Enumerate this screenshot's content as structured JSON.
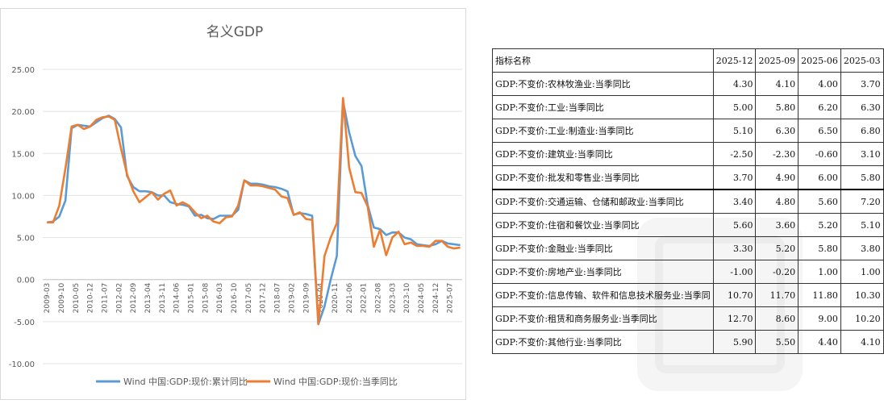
{
  "chart_data": {
    "type": "line",
    "title": "名义GDP",
    "xlabel": "",
    "ylabel": "",
    "ylim": [
      -10,
      25
    ],
    "yticks": [
      "25.00",
      "20.00",
      "15.00",
      "10.00",
      "5.00",
      "0.00",
      "-5.00",
      "-10.00"
    ],
    "xticks": [
      "2009-03",
      "2009-10",
      "2010-05",
      "2010-12",
      "2011-07",
      "2012-02",
      "2012-09",
      "2013-04",
      "2013-11",
      "2014-06",
      "2015-01",
      "2015-08",
      "2016-03",
      "2016-10",
      "2017-05",
      "2017-12",
      "2018-07",
      "2019-02",
      "2019-09",
      "2020-04",
      "2020-11",
      "2021-06",
      "2022-01",
      "2022-08",
      "2023-03",
      "2023-10",
      "2024-05",
      "2024-12",
      "2025-07"
    ],
    "grid": true,
    "legend_position": "bottom",
    "series": [
      {
        "name": "Wind 中国:GDP:现价:累计同比",
        "color": "#5b9bd5",
        "points": [
          [
            2009.17,
            6.8
          ],
          [
            2009.42,
            6.9
          ],
          [
            2009.67,
            7.5
          ],
          [
            2009.92,
            9.4
          ],
          [
            2010.17,
            18.0
          ],
          [
            2010.42,
            18.4
          ],
          [
            2010.67,
            18.3
          ],
          [
            2010.92,
            18.2
          ],
          [
            2011.17,
            18.7
          ],
          [
            2011.42,
            19.2
          ],
          [
            2011.67,
            19.5
          ],
          [
            2011.92,
            19.1
          ],
          [
            2012.17,
            18.1
          ],
          [
            2012.42,
            12.3
          ],
          [
            2012.67,
            11.0
          ],
          [
            2012.92,
            10.5
          ],
          [
            2013.17,
            10.5
          ],
          [
            2013.42,
            10.4
          ],
          [
            2013.67,
            10.0
          ],
          [
            2013.92,
            10.0
          ],
          [
            2014.17,
            9.2
          ],
          [
            2014.42,
            9.0
          ],
          [
            2014.67,
            8.9
          ],
          [
            2014.92,
            8.7
          ],
          [
            2015.17,
            7.6
          ],
          [
            2015.42,
            7.7
          ],
          [
            2015.67,
            7.3
          ],
          [
            2015.92,
            7.2
          ],
          [
            2016.17,
            7.6
          ],
          [
            2016.42,
            7.6
          ],
          [
            2016.67,
            7.6
          ],
          [
            2016.92,
            8.3
          ],
          [
            2017.17,
            11.8
          ],
          [
            2017.42,
            11.4
          ],
          [
            2017.67,
            11.4
          ],
          [
            2017.92,
            11.3
          ],
          [
            2018.17,
            11.1
          ],
          [
            2018.42,
            11.0
          ],
          [
            2018.67,
            10.8
          ],
          [
            2018.92,
            10.5
          ],
          [
            2019.17,
            7.7
          ],
          [
            2019.42,
            7.9
          ],
          [
            2019.67,
            7.8
          ],
          [
            2019.92,
            7.6
          ],
          [
            2020.17,
            -5.3
          ],
          [
            2020.42,
            -3.2
          ],
          [
            2020.67,
            0.0
          ],
          [
            2020.92,
            2.8
          ],
          [
            2021.17,
            21.2
          ],
          [
            2021.42,
            17.5
          ],
          [
            2021.67,
            14.7
          ],
          [
            2021.92,
            13.5
          ],
          [
            2022.17,
            8.9
          ],
          [
            2022.42,
            6.2
          ],
          [
            2022.67,
            6.0
          ],
          [
            2022.92,
            5.3
          ],
          [
            2023.17,
            5.6
          ],
          [
            2023.42,
            5.6
          ],
          [
            2023.67,
            5.0
          ],
          [
            2023.92,
            4.8
          ],
          [
            2024.17,
            4.2
          ],
          [
            2024.42,
            4.1
          ],
          [
            2024.67,
            4.0
          ],
          [
            2024.92,
            4.2
          ],
          [
            2025.17,
            4.6
          ],
          [
            2025.42,
            4.3
          ],
          [
            2025.67,
            4.2
          ],
          [
            2025.92,
            4.1
          ]
        ]
      },
      {
        "name": "Wind 中国:GDP:现价:当季同比",
        "color": "#ed7d31",
        "points": [
          [
            2009.17,
            6.8
          ],
          [
            2009.42,
            6.8
          ],
          [
            2009.67,
            8.8
          ],
          [
            2009.92,
            13.2
          ],
          [
            2010.17,
            18.2
          ],
          [
            2010.42,
            18.4
          ],
          [
            2010.67,
            17.9
          ],
          [
            2010.92,
            18.2
          ],
          [
            2011.17,
            19.0
          ],
          [
            2011.42,
            19.3
          ],
          [
            2011.67,
            19.4
          ],
          [
            2011.92,
            19.0
          ],
          [
            2012.17,
            15.6
          ],
          [
            2012.42,
            12.5
          ],
          [
            2012.67,
            10.5
          ],
          [
            2012.92,
            9.2
          ],
          [
            2013.17,
            9.8
          ],
          [
            2013.42,
            10.4
          ],
          [
            2013.67,
            9.5
          ],
          [
            2013.92,
            10.2
          ],
          [
            2014.17,
            10.6
          ],
          [
            2014.42,
            8.8
          ],
          [
            2014.67,
            9.2
          ],
          [
            2014.92,
            8.8
          ],
          [
            2015.17,
            8.0
          ],
          [
            2015.42,
            7.3
          ],
          [
            2015.67,
            7.6
          ],
          [
            2015.92,
            6.9
          ],
          [
            2016.17,
            6.7
          ],
          [
            2016.42,
            7.4
          ],
          [
            2016.67,
            7.5
          ],
          [
            2016.92,
            8.8
          ],
          [
            2017.17,
            11.8
          ],
          [
            2017.42,
            11.2
          ],
          [
            2017.67,
            11.2
          ],
          [
            2017.92,
            11.1
          ],
          [
            2018.17,
            10.9
          ],
          [
            2018.42,
            10.7
          ],
          [
            2018.67,
            9.9
          ],
          [
            2018.92,
            9.7
          ],
          [
            2019.17,
            7.7
          ],
          [
            2019.42,
            8.0
          ],
          [
            2019.67,
            7.2
          ],
          [
            2019.92,
            7.1
          ],
          [
            2020.17,
            -5.3
          ],
          [
            2020.42,
            2.8
          ],
          [
            2020.67,
            5.0
          ],
          [
            2020.92,
            6.7
          ],
          [
            2021.17,
            21.6
          ],
          [
            2021.42,
            13.3
          ],
          [
            2021.67,
            10.4
          ],
          [
            2021.92,
            10.3
          ],
          [
            2022.17,
            8.7
          ],
          [
            2022.42,
            3.9
          ],
          [
            2022.67,
            5.9
          ],
          [
            2022.92,
            2.9
          ],
          [
            2023.17,
            5.0
          ],
          [
            2023.42,
            5.7
          ],
          [
            2023.67,
            4.2
          ],
          [
            2023.92,
            4.4
          ],
          [
            2024.17,
            4.0
          ],
          [
            2024.42,
            4.0
          ],
          [
            2024.67,
            3.9
          ],
          [
            2024.92,
            4.6
          ],
          [
            2025.17,
            4.6
          ],
          [
            2025.42,
            3.9
          ],
          [
            2025.67,
            3.7
          ],
          [
            2025.92,
            3.8
          ]
        ]
      }
    ]
  },
  "table": {
    "headers": [
      "指标名称",
      "2025-12",
      "2025-09",
      "2025-06",
      "2025-03"
    ],
    "rows": [
      [
        "GDP:不变价:农林牧渔业:当季同比",
        "4.30",
        "4.10",
        "4.00",
        "3.70"
      ],
      [
        "GDP:不变价:工业:当季同比",
        "5.00",
        "5.80",
        "6.20",
        "6.30"
      ],
      [
        "GDP:不变价:工业:制造业:当季同比",
        "5.10",
        "6.30",
        "6.50",
        "6.80"
      ],
      [
        "GDP:不变价:建筑业:当季同比",
        "-2.50",
        "-2.30",
        "-0.60",
        "3.10"
      ],
      [
        "GDP:不变价:批发和零售业:当季同比",
        "3.70",
        "4.90",
        "6.00",
        "5.80"
      ],
      [
        "GDP:不变价:交通运输、仓储和邮政业:当季同比",
        "3.40",
        "4.80",
        "5.60",
        "7.20"
      ],
      [
        "GDP:不变价:住宿和餐饮业:当季同比",
        "5.60",
        "3.60",
        "5.20",
        "5.10"
      ],
      [
        "GDP:不变价:金融业:当季同比",
        "3.30",
        "5.20",
        "5.80",
        "3.80"
      ],
      [
        "GDP:不变价:房地产业:当季同比",
        "-1.00",
        "-0.20",
        "1.00",
        "1.00"
      ],
      [
        "GDP:不变价:信息传输、软件和信息技术服务业:当季同",
        "10.70",
        "11.70",
        "11.80",
        "10.30"
      ],
      [
        "GDP:不变价:租赁和商务服务业:当季同比",
        "12.70",
        "8.60",
        "9.00",
        "10.20"
      ],
      [
        "GDP:不变价:其他行业:当季同比",
        "5.90",
        "5.50",
        "4.40",
        "4.10"
      ]
    ]
  }
}
